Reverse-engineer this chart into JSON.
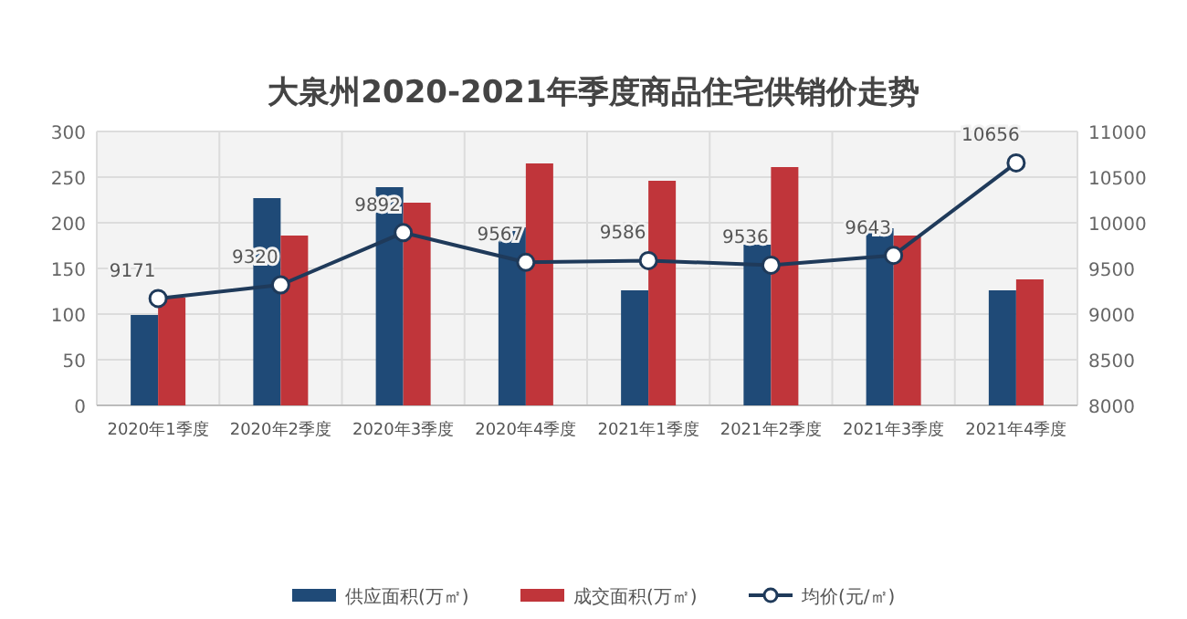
{
  "chart_data": {
    "type": "bar",
    "title": "大泉州2020-2021年季度商品住宅供销价走势",
    "categories": [
      "2020年1季度",
      "2020年2季度",
      "2020年3季度",
      "2020年4季度",
      "2021年1季度",
      "2021年2季度",
      "2021年3季度",
      "2021年4季度"
    ],
    "series": [
      {
        "name": "供应面积(万㎡)",
        "color": "#1f4a77",
        "values": [
          99,
          227,
          239,
          195,
          126,
          176,
          194,
          126
        ]
      },
      {
        "name": "成交面积(万㎡)",
        "color": "#c0353a",
        "values": [
          118,
          186,
          222,
          265,
          246,
          261,
          186,
          138
        ]
      },
      {
        "name": "均价(元/㎡)",
        "type": "line",
        "axis": "y2",
        "color": "#1f3a5a",
        "marker": "circle",
        "data_labels": true,
        "values": [
          9171,
          9320,
          9892,
          9567,
          9586,
          9536,
          9643,
          10656
        ]
      }
    ],
    "ylim": [
      0,
      300
    ],
    "yticks": [
      0,
      50,
      100,
      150,
      200,
      250,
      300
    ],
    "y2lim": [
      8000,
      11000
    ],
    "y2ticks": [
      8000,
      8500,
      9000,
      9500,
      10000,
      10500,
      11000
    ],
    "grid": true,
    "legend": "bottom"
  }
}
